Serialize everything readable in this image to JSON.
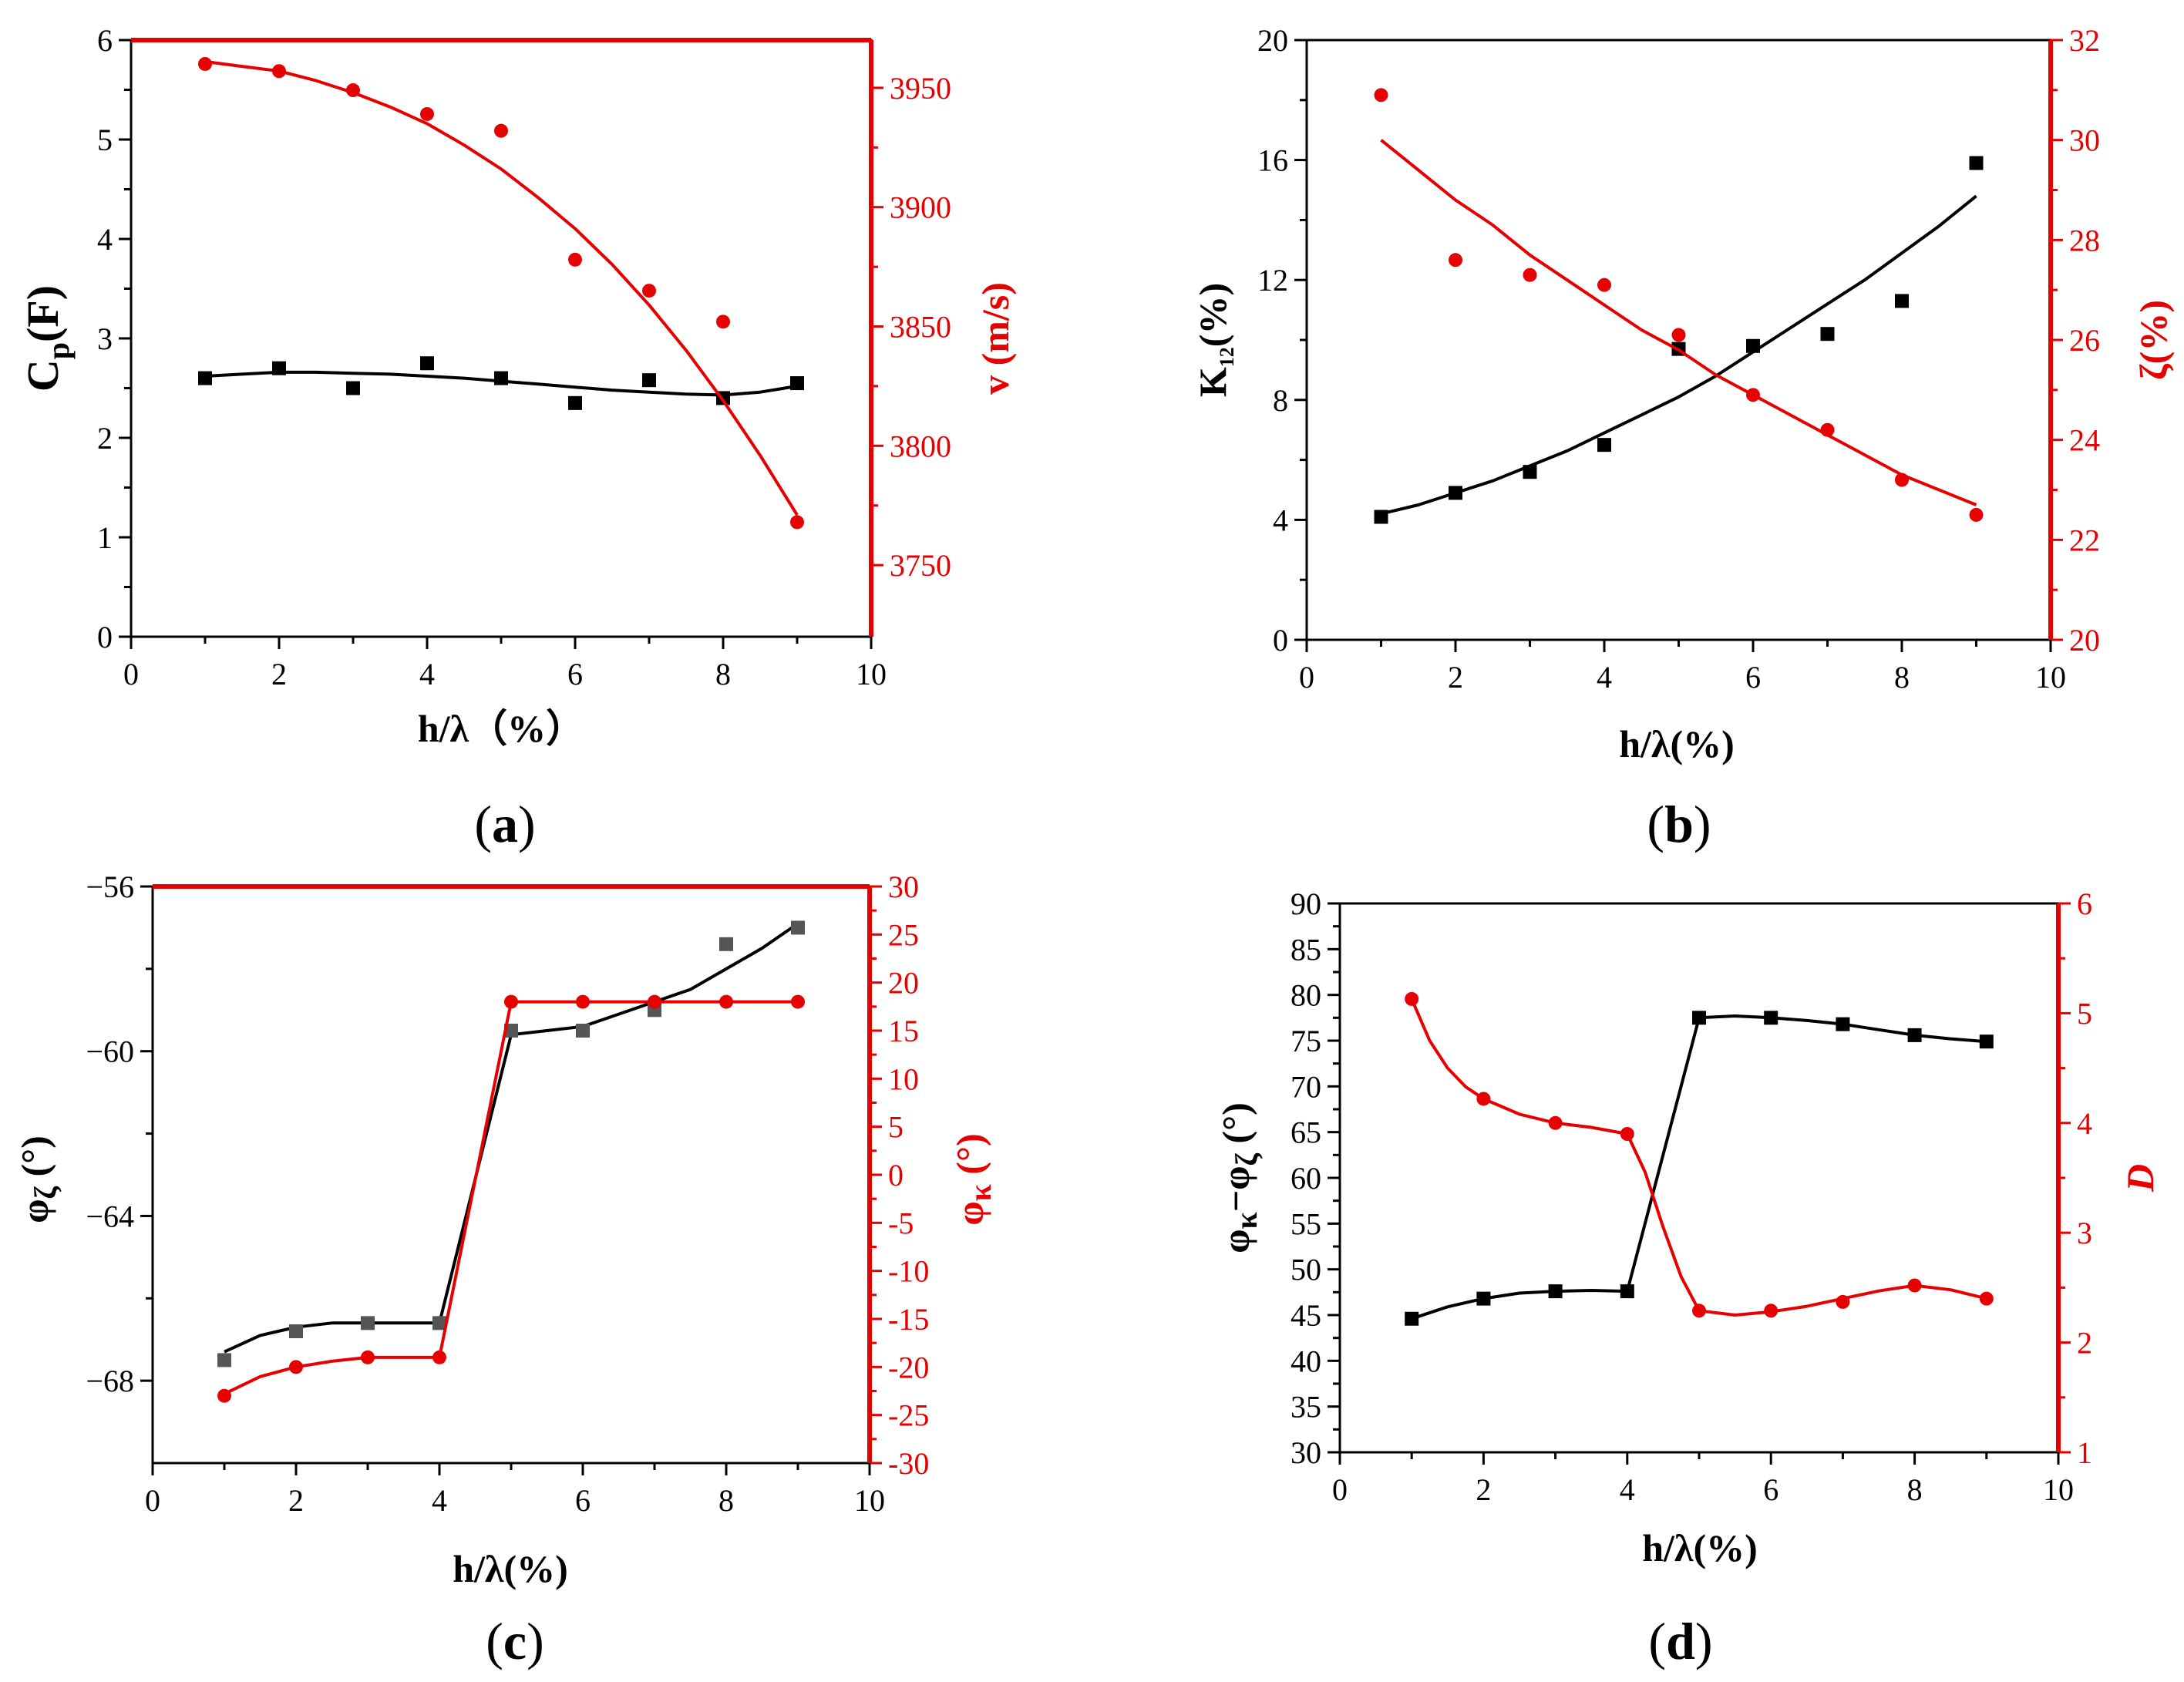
{
  "colors": {
    "left": "#000000",
    "right": "#e60000"
  },
  "chart_data": [
    {
      "id": "a",
      "type": "scatter",
      "caption_open": "(",
      "caption": "a",
      "caption_close": ")",
      "xlabel": "h/λ（%）",
      "xlim": [
        0,
        10
      ],
      "xticks": [
        0,
        2,
        4,
        6,
        8,
        10
      ],
      "ylabel_left": "Cp(F)",
      "ylabel_left_main": "C",
      "ylabel_left_sub": "p",
      "ylabel_left_rest": "(F)",
      "ylim_left": [
        0,
        6
      ],
      "yticks_left": [
        0,
        1,
        2,
        3,
        4,
        5,
        6
      ],
      "ylabel_right": "v (m/s)",
      "ylim_right": [
        3720,
        3970
      ],
      "yticks_right": [
        3750,
        3800,
        3850,
        3900,
        3950
      ],
      "series": [
        {
          "name": "Cp(F)",
          "axis": "left",
          "marker": "square",
          "x": [
            1,
            2,
            3,
            4,
            5,
            6,
            7,
            8,
            9
          ],
          "values": [
            2.6,
            2.7,
            2.5,
            2.75,
            2.6,
            2.35,
            2.58,
            2.4,
            2.55
          ],
          "fit_x": [
            1,
            1.5,
            2,
            2.5,
            3,
            3.5,
            4,
            4.5,
            5,
            5.5,
            6,
            6.5,
            7,
            7.5,
            8,
            8.5,
            9
          ],
          "fit": [
            2.62,
            2.64,
            2.66,
            2.66,
            2.65,
            2.64,
            2.62,
            2.6,
            2.57,
            2.54,
            2.51,
            2.48,
            2.46,
            2.44,
            2.43,
            2.46,
            2.52
          ]
        },
        {
          "name": "v (m/s)",
          "axis": "right",
          "marker": "circle",
          "x": [
            1,
            2,
            3,
            4,
            5,
            6,
            7,
            8,
            9
          ],
          "values": [
            3960,
            3957,
            3949,
            3939,
            3932,
            3878,
            3865,
            3852,
            3768
          ],
          "fit_x": [
            1,
            1.5,
            2,
            2.5,
            3,
            3.5,
            4,
            4.5,
            5,
            5.5,
            6,
            6.5,
            7,
            7.5,
            8,
            8.5,
            9
          ],
          "fit": [
            3961,
            3959,
            3957,
            3953,
            3948,
            3942,
            3935,
            3926,
            3916,
            3904,
            3891,
            3876,
            3859,
            3840,
            3819,
            3796,
            3771
          ]
        }
      ]
    },
    {
      "id": "b",
      "type": "scatter",
      "caption_open": "(",
      "caption": "b",
      "caption_close": ")",
      "xlabel": "h/λ(%)",
      "xlim": [
        0,
        10
      ],
      "xticks": [
        0,
        2,
        4,
        6,
        8,
        10
      ],
      "ylabel_left": "K12(%)",
      "ylabel_left_main": "K",
      "ylabel_left_sub": "12",
      "ylabel_left_rest": "(%)",
      "ylim_left": [
        0,
        20
      ],
      "yticks_left": [
        0,
        4,
        8,
        12,
        16,
        20
      ],
      "ylabel_right": "ζ(%)",
      "ylim_right": [
        20,
        32
      ],
      "yticks_right": [
        20,
        22,
        24,
        26,
        28,
        30,
        32
      ],
      "series": [
        {
          "name": "K12(%)",
          "axis": "left",
          "marker": "square",
          "x": [
            1,
            2,
            3,
            4,
            5,
            6,
            7,
            8,
            9
          ],
          "values": [
            4.1,
            4.9,
            5.6,
            6.5,
            9.7,
            9.8,
            10.2,
            11.3,
            15.9
          ],
          "fit_x": [
            1,
            1.5,
            2,
            2.5,
            3,
            3.5,
            4,
            4.5,
            5,
            5.5,
            6,
            6.5,
            7,
            7.5,
            8,
            8.5,
            9
          ],
          "fit": [
            4.2,
            4.5,
            4.9,
            5.3,
            5.8,
            6.3,
            6.9,
            7.5,
            8.1,
            8.8,
            9.6,
            10.4,
            11.2,
            12.0,
            12.9,
            13.8,
            14.8
          ]
        },
        {
          "name": "ζ(%)",
          "axis": "right",
          "marker": "circle",
          "x": [
            1,
            2,
            3,
            4,
            5,
            6,
            7,
            8,
            9
          ],
          "values": [
            30.9,
            27.6,
            27.3,
            27.1,
            26.1,
            24.9,
            24.2,
            23.2,
            22.5
          ],
          "fit_x": [
            1,
            1.5,
            2,
            2.5,
            3,
            3.5,
            4,
            4.5,
            5,
            5.5,
            6,
            6.5,
            7,
            7.5,
            8,
            8.5,
            9
          ],
          "fit": [
            30.0,
            29.4,
            28.8,
            28.3,
            27.7,
            27.2,
            26.7,
            26.2,
            25.8,
            25.3,
            24.9,
            24.5,
            24.1,
            23.7,
            23.3,
            23.0,
            22.7
          ]
        }
      ]
    },
    {
      "id": "c",
      "type": "scatter",
      "caption_open": "(",
      "caption": "c",
      "caption_close": ")",
      "xlabel": "h/λ(%)",
      "xlim": [
        0,
        10
      ],
      "xticks": [
        0,
        2,
        4,
        6,
        8,
        10
      ],
      "ylabel_left": "φζ (°)",
      "ylabel_left_main": "φ",
      "ylabel_left_sub": "ζ",
      "ylabel_left_rest": " (°)",
      "ylim_left": [
        -70,
        -56
      ],
      "yticks_left": [
        -56,
        -60,
        -64,
        -68
      ],
      "ytick_labels_left": [
        "−56",
        "−60",
        "−64",
        "−68"
      ],
      "ylabel_right": "φκ (°)",
      "ylabel_right_main": "φ",
      "ylabel_right_sub": "κ",
      "ylabel_right_rest": " (°)",
      "ylim_right": [
        -30,
        30
      ],
      "yticks_right": [
        -30,
        -25,
        -20,
        -15,
        -10,
        -5,
        0,
        5,
        10,
        15,
        20,
        25,
        30
      ],
      "series": [
        {
          "name": "φζ (°)",
          "axis": "left",
          "marker": "square",
          "x": [
            1,
            2,
            3,
            4,
            5,
            6,
            7,
            8,
            9
          ],
          "values": [
            -67.5,
            -66.8,
            -66.6,
            -66.6,
            -59.5,
            -59.5,
            -59.0,
            -57.4,
            -57.0
          ],
          "fit_x": [
            1,
            1.25,
            1.5,
            1.75,
            2,
            2.5,
            3,
            4,
            5,
            5.5,
            6,
            6.5,
            7,
            7.5,
            8,
            8.5,
            9
          ],
          "fit": [
            -67.3,
            -67.1,
            -66.9,
            -66.8,
            -66.7,
            -66.6,
            -66.6,
            -66.6,
            -59.6,
            -59.5,
            -59.4,
            -59.1,
            -58.8,
            -58.5,
            -58.0,
            -57.5,
            -56.9
          ]
        },
        {
          "name": "φκ (°)",
          "axis": "right",
          "marker": "circle",
          "x": [
            1,
            2,
            3,
            4,
            5,
            6,
            7,
            8,
            9
          ],
          "values": [
            -23,
            -20,
            -19,
            -19,
            18,
            18,
            18,
            18,
            18
          ],
          "fit_x": [
            1,
            1.5,
            2,
            2.5,
            3,
            4,
            5,
            6,
            7,
            8,
            9
          ],
          "fit": [
            -22.8,
            -21.0,
            -20.0,
            -19.4,
            -19.0,
            -19.0,
            18,
            18,
            18,
            18,
            18
          ]
        }
      ]
    },
    {
      "id": "d",
      "type": "line",
      "caption_open": "(",
      "caption": "d",
      "caption_close": ")",
      "xlabel": "h/λ(%)",
      "xlim": [
        0,
        10
      ],
      "xticks": [
        0,
        2,
        4,
        6,
        8,
        10
      ],
      "ylabel_left": "φκ−φζ (°)",
      "ylabel_left_main": "φ",
      "ylabel_left_sub": "κ",
      "ylabel_left_mid": "−φ",
      "ylabel_left_sub2": "ζ",
      "ylabel_left_rest": " (°)",
      "ylim_left": [
        30,
        90
      ],
      "yticks_left": [
        30,
        35,
        40,
        45,
        50,
        55,
        60,
        65,
        70,
        75,
        80,
        85,
        90
      ],
      "ylabel_right": "D",
      "ylim_right": [
        1,
        6
      ],
      "yticks_right": [
        1,
        2,
        3,
        4,
        5,
        6
      ],
      "series": [
        {
          "name": "φκ−φζ (°)",
          "axis": "left",
          "marker": "square",
          "x": [
            1,
            2,
            3,
            4,
            5,
            6,
            7,
            8,
            9
          ],
          "values": [
            44.6,
            46.8,
            47.6,
            47.6,
            77.5,
            77.5,
            76.8,
            75.6,
            74.9
          ],
          "fit_x": [
            1,
            1.5,
            2,
            2.5,
            3,
            3.5,
            4,
            5,
            5.5,
            6,
            6.5,
            7,
            7.5,
            8,
            8.5,
            9
          ],
          "fit": [
            44.6,
            45.9,
            46.8,
            47.4,
            47.6,
            47.7,
            47.6,
            77.5,
            77.7,
            77.5,
            77.2,
            76.8,
            76.2,
            75.6,
            75.2,
            74.9
          ]
        },
        {
          "name": "D",
          "axis": "right",
          "marker": "circle",
          "x": [
            1,
            2,
            3,
            4,
            5,
            6,
            7,
            8,
            9
          ],
          "values": [
            5.13,
            4.22,
            4.0,
            3.9,
            2.29,
            2.29,
            2.37,
            2.52,
            2.4
          ],
          "fit_x": [
            1,
            1.25,
            1.5,
            1.75,
            2,
            2.5,
            3,
            3.5,
            4,
            4.25,
            4.5,
            4.75,
            5,
            5.5,
            6,
            6.5,
            7,
            7.5,
            8,
            8.5,
            9
          ],
          "fit": [
            5.13,
            4.75,
            4.5,
            4.33,
            4.22,
            4.08,
            4.0,
            3.96,
            3.9,
            3.55,
            3.05,
            2.6,
            2.29,
            2.25,
            2.28,
            2.33,
            2.4,
            2.47,
            2.52,
            2.48,
            2.4
          ]
        }
      ]
    }
  ]
}
